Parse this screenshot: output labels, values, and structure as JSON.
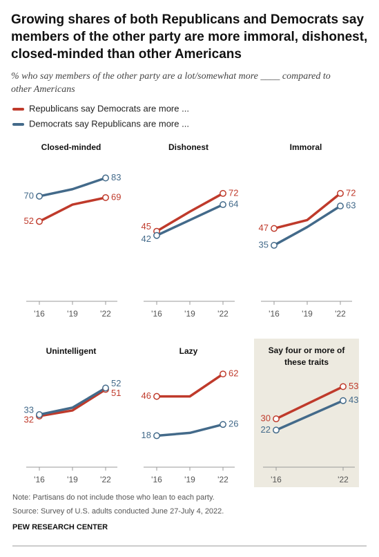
{
  "title": "Growing shares of both Republicans and Democrats say members of the other party are more immoral, dishonest, closed-minded than other Americans",
  "subtitle": "% who say members of the other party are a lot/somewhat more ____ compared to other Americans",
  "chart_data": [
    {
      "type": "line",
      "title": "Closed-minded",
      "categories": [
        "'16",
        "'19",
        "'22"
      ],
      "ylim": [
        0,
        90
      ],
      "series": [
        {
          "name": "Republicans say Democrats are more ...",
          "color": "#bf3a2b",
          "values": [
            52,
            64,
            69
          ]
        },
        {
          "name": "Democrats say Republicans are more ...",
          "color": "#436a8a",
          "values": [
            70,
            75,
            83
          ]
        }
      ]
    },
    {
      "type": "line",
      "title": "Dishonest",
      "categories": [
        "'16",
        "'19",
        "'22"
      ],
      "ylim": [
        0,
        90
      ],
      "series": [
        {
          "name": "Republicans say Democrats are more ...",
          "color": "#bf3a2b",
          "values": [
            45,
            59,
            72
          ]
        },
        {
          "name": "Democrats say Republicans are more ...",
          "color": "#436a8a",
          "values": [
            42,
            53,
            64
          ]
        }
      ]
    },
    {
      "type": "line",
      "title": "Immoral",
      "categories": [
        "'16",
        "'19",
        "'22"
      ],
      "ylim": [
        0,
        90
      ],
      "series": [
        {
          "name": "Republicans say Democrats are more ...",
          "color": "#bf3a2b",
          "values": [
            47,
            53,
            72
          ]
        },
        {
          "name": "Democrats say Republicans are more ...",
          "color": "#436a8a",
          "values": [
            35,
            48,
            63
          ]
        }
      ]
    },
    {
      "type": "line",
      "title": "Unintelligent",
      "categories": [
        "'16",
        "'19",
        "'22"
      ],
      "ylim": [
        0,
        90
      ],
      "series": [
        {
          "name": "Republicans say Democrats are more ...",
          "color": "#bf3a2b",
          "values": [
            32,
            36,
            51
          ]
        },
        {
          "name": "Democrats say Republicans are more ...",
          "color": "#436a8a",
          "values": [
            33,
            38,
            52
          ]
        }
      ]
    },
    {
      "type": "line",
      "title": "Lazy",
      "categories": [
        "'16",
        "'19",
        "'22"
      ],
      "ylim": [
        0,
        90
      ],
      "series": [
        {
          "name": "Republicans say Democrats are more ...",
          "color": "#bf3a2b",
          "values": [
            46,
            46,
            62
          ]
        },
        {
          "name": "Democrats say Republicans are more ...",
          "color": "#436a8a",
          "values": [
            18,
            20,
            26
          ]
        }
      ]
    },
    {
      "type": "line",
      "title": "Say four or more of these traits",
      "categories": [
        "'16",
        "'22"
      ],
      "ylim": [
        0,
        90
      ],
      "background": "#edeae0",
      "series": [
        {
          "name": "Republicans say Democrats are more ...",
          "color": "#bf3a2b",
          "values": [
            30,
            53
          ]
        },
        {
          "name": "Democrats say Republicans are more ...",
          "color": "#436a8a",
          "values": [
            22,
            43
          ]
        }
      ]
    }
  ],
  "note": "Note: Partisans do not include those who lean to each party.",
  "source": "Source: Survey of U.S. adults conducted June 27-July 4, 2022.",
  "footer": "PEW RESEARCH CENTER"
}
